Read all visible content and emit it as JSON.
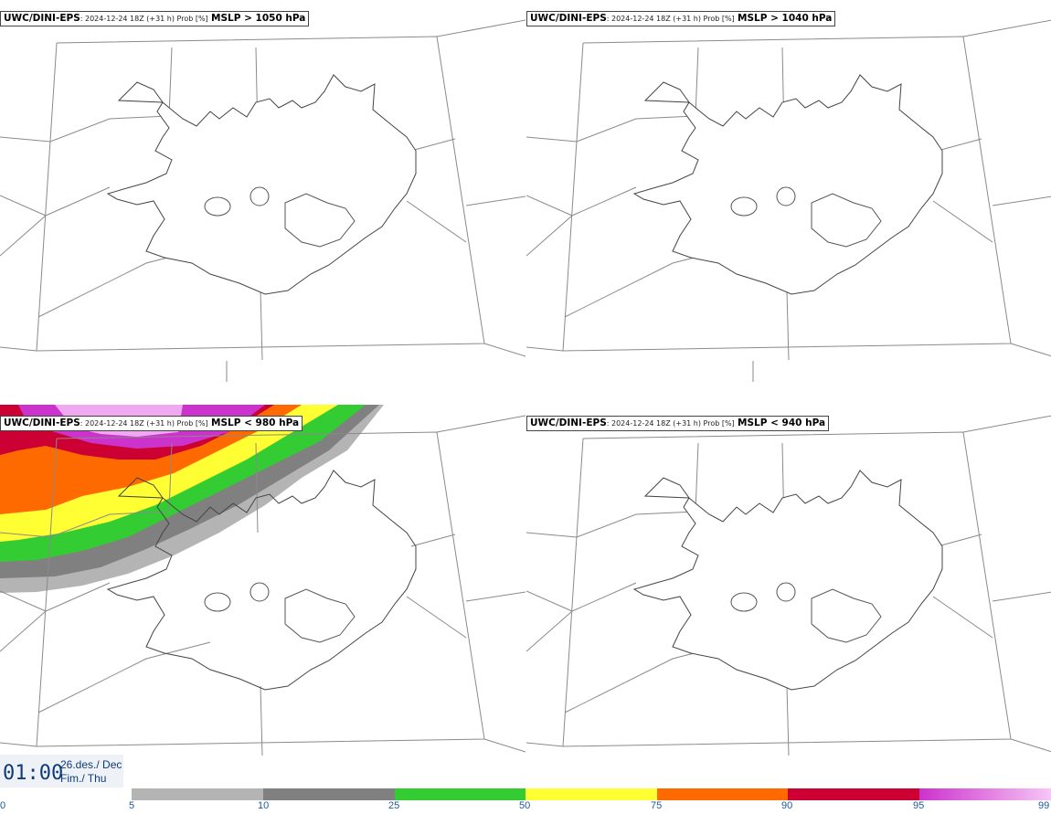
{
  "panels": [
    {
      "model": "UWC/DINI-EPS",
      "info": ": 2024-12-24 18Z (+31 h) Prob [%]",
      "field": "MSLP > 1050 hPa"
    },
    {
      "model": "UWC/DINI-EPS",
      "info": ": 2024-12-24 18Z (+31 h) Prob [%]",
      "field": "MSLP > 1040 hPa"
    },
    {
      "model": "UWC/DINI-EPS",
      "info": ": 2024-12-24 18Z (+31 h) Prob [%]",
      "field": "MSLP < 980 hPa"
    },
    {
      "model": "UWC/DINI-EPS",
      "info": ": 2024-12-24 18Z (+31 h) Prob [%]",
      "field": "MSLP < 940 hPa"
    }
  ],
  "time": {
    "clock": "01:00",
    "date_line1": "26.des./ Dec",
    "date_line2": "Fim./ Thu"
  },
  "colorbar": {
    "ticks": [
      "0",
      "5",
      "10",
      "25",
      "50",
      "75",
      "90",
      "95",
      "99"
    ],
    "colors": [
      "#ffffff",
      "#b4b4b4",
      "#808080",
      "#33cc33",
      "#ffff33",
      "#ff6a00",
      "#cc0033",
      "#cc33cc",
      "#f0a8f0"
    ]
  },
  "probability_fill_panel_3": {
    "description_bands": [
      "5",
      "10",
      "25",
      "50",
      "75",
      "90",
      "95",
      "99"
    ]
  }
}
